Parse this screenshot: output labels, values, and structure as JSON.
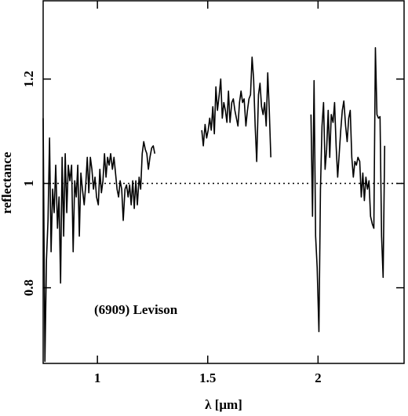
{
  "chart_data": {
    "type": "line",
    "xlabel": "λ [μm]",
    "ylabel": "reflectance",
    "annotation": "(6909)  Levison",
    "color": "#000000",
    "hline": 1,
    "xlim": [
      0.754,
      2.39
    ],
    "ylim": [
      0.655,
      1.35
    ],
    "xticks": [
      1,
      1.5,
      2
    ],
    "yticks": [
      0.8,
      1,
      1.2
    ],
    "x": [
      0.754,
      0.762,
      0.769,
      0.776,
      0.783,
      0.79,
      0.797,
      0.804,
      0.811,
      0.819,
      0.826,
      0.833,
      0.84,
      0.847,
      0.854,
      0.861,
      0.868,
      0.875,
      0.883,
      0.89,
      0.897,
      0.904,
      0.911,
      0.918,
      0.925,
      0.932,
      0.94,
      0.947,
      0.954,
      0.961,
      0.968,
      0.975,
      0.982,
      0.989,
      0.996,
      1.004,
      1.011,
      1.018,
      1.025,
      1.032,
      1.039,
      1.046,
      1.053,
      1.06,
      1.068,
      1.075,
      1.082,
      1.089,
      1.096,
      1.103,
      1.11,
      1.117,
      1.125,
      1.132,
      1.139,
      1.146,
      1.153,
      1.16,
      1.167,
      1.174,
      1.181,
      1.189,
      1.196,
      1.203,
      1.21,
      1.217,
      1.224,
      1.231,
      1.238,
      1.246,
      1.253,
      1.26,
      1.37,
      1.473,
      1.48,
      1.488,
      1.495,
      1.502,
      1.509,
      1.516,
      1.523,
      1.53,
      1.537,
      1.544,
      1.552,
      1.559,
      1.566,
      1.573,
      1.58,
      1.587,
      1.594,
      1.601,
      1.609,
      1.616,
      1.623,
      1.63,
      1.637,
      1.644,
      1.651,
      1.658,
      1.665,
      1.673,
      1.68,
      1.687,
      1.694,
      1.701,
      1.708,
      1.715,
      1.722,
      1.73,
      1.737,
      1.744,
      1.751,
      1.758,
      1.765,
      1.772,
      1.779,
      1.786,
      1.88,
      1.968,
      1.975,
      1.982,
      1.989,
      1.996,
      2.004,
      2.011,
      2.018,
      2.025,
      2.032,
      2.039,
      2.046,
      2.053,
      2.06,
      2.068,
      2.075,
      2.082,
      2.089,
      2.096,
      2.103,
      2.11,
      2.117,
      2.125,
      2.132,
      2.139,
      2.146,
      2.153,
      2.16,
      2.167,
      2.174,
      2.181,
      2.189,
      2.196,
      2.203,
      2.21,
      2.217,
      2.224,
      2.231,
      2.238,
      2.246,
      2.253,
      2.26,
      2.267,
      2.274,
      2.281,
      2.288,
      2.295,
      2.302
    ],
    "values": [
      1.125,
      0.659,
      0.854,
      0.929,
      1.087,
      0.869,
      0.989,
      0.944,
      1.035,
      0.914,
      0.974,
      0.809,
      1.05,
      0.899,
      1.057,
      0.944,
      1.035,
      1.005,
      1.035,
      0.869,
      1.005,
      0.974,
      1.035,
      0.899,
      1.02,
      0.989,
      0.959,
      0.997,
      1.05,
      0.982,
      1.05,
      1.027,
      0.989,
      1.012,
      0.974,
      0.959,
      1.027,
      0.982,
      1.005,
      1.057,
      1.012,
      1.05,
      1.035,
      1.057,
      1.027,
      1.05,
      1.02,
      0.989,
      0.974,
      1.005,
      0.989,
      0.929,
      0.989,
      0.997,
      0.974,
      0.997,
      0.959,
      1.005,
      0.952,
      1.005,
      0.959,
      1.012,
      0.989,
      1.057,
      1.08,
      1.065,
      1.057,
      1.027,
      1.05,
      1.068,
      1.072,
      1.057,
      null,
      1.102,
      1.072,
      1.113,
      1.087,
      1.102,
      1.125,
      1.102,
      1.147,
      1.095,
      1.185,
      1.14,
      1.17,
      1.2,
      1.125,
      1.155,
      1.14,
      1.117,
      1.177,
      1.117,
      1.155,
      1.162,
      1.14,
      1.125,
      1.11,
      1.155,
      1.177,
      1.155,
      1.162,
      1.11,
      1.14,
      1.162,
      1.17,
      1.242,
      1.2,
      1.11,
      1.042,
      1.17,
      1.192,
      1.147,
      1.132,
      1.155,
      1.11,
      1.212,
      1.14,
      1.05,
      null,
      1.132,
      0.937,
      1.197,
      0.899,
      0.839,
      0.716,
      0.989,
      1.11,
      1.155,
      1.027,
      1.065,
      1.14,
      1.05,
      1.132,
      1.117,
      1.155,
      1.072,
      1.012,
      1.057,
      1.102,
      1.14,
      1.158,
      1.11,
      1.08,
      1.125,
      1.14,
      1.05,
      1.012,
      1.042,
      1.035,
      1.05,
      1.042,
      0.974,
      1.02,
      0.967,
      1.012,
      0.989,
      1.005,
      0.937,
      0.922,
      0.914,
      1.26,
      1.132,
      1.125,
      1.128,
      0.899,
      0.82,
      1.072
    ]
  }
}
